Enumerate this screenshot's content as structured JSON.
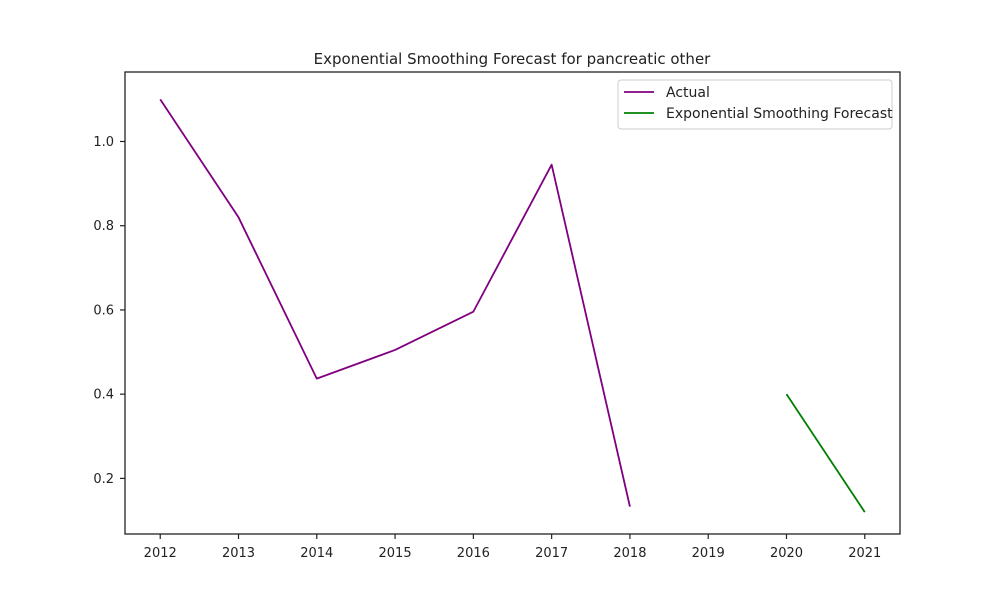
{
  "chart_data": {
    "type": "line",
    "title": "Exponential Smoothing Forecast for pancreatic other",
    "xlabel": "",
    "ylabel": "",
    "xlim": [
      2011.55,
      2021.45
    ],
    "ylim": [
      0.068,
      1.165
    ],
    "x_ticks": [
      2012,
      2013,
      2014,
      2015,
      2016,
      2017,
      2018,
      2019,
      2020,
      2021
    ],
    "x_tick_labels": [
      "2012",
      "2013",
      "2014",
      "2015",
      "2016",
      "2017",
      "2018",
      "2019",
      "2020",
      "2021"
    ],
    "y_ticks": [
      0.2,
      0.4,
      0.6,
      0.8,
      1.0
    ],
    "y_tick_labels": [
      "0.2",
      "0.4",
      "0.6",
      "0.8",
      "1.0"
    ],
    "grid": false,
    "legend_position": "top-right",
    "series": [
      {
        "name": "Actual",
        "color": "#800080",
        "x": [
          2012,
          2013,
          2014,
          2015,
          2016,
          2017,
          2018
        ],
        "y": [
          1.1,
          0.82,
          0.437,
          0.505,
          0.596,
          0.945,
          0.133
        ]
      },
      {
        "name": "Exponential Smoothing Forecast",
        "color": "#008000",
        "x": [
          2020,
          2021
        ],
        "y": [
          0.4,
          0.12
        ]
      }
    ]
  }
}
